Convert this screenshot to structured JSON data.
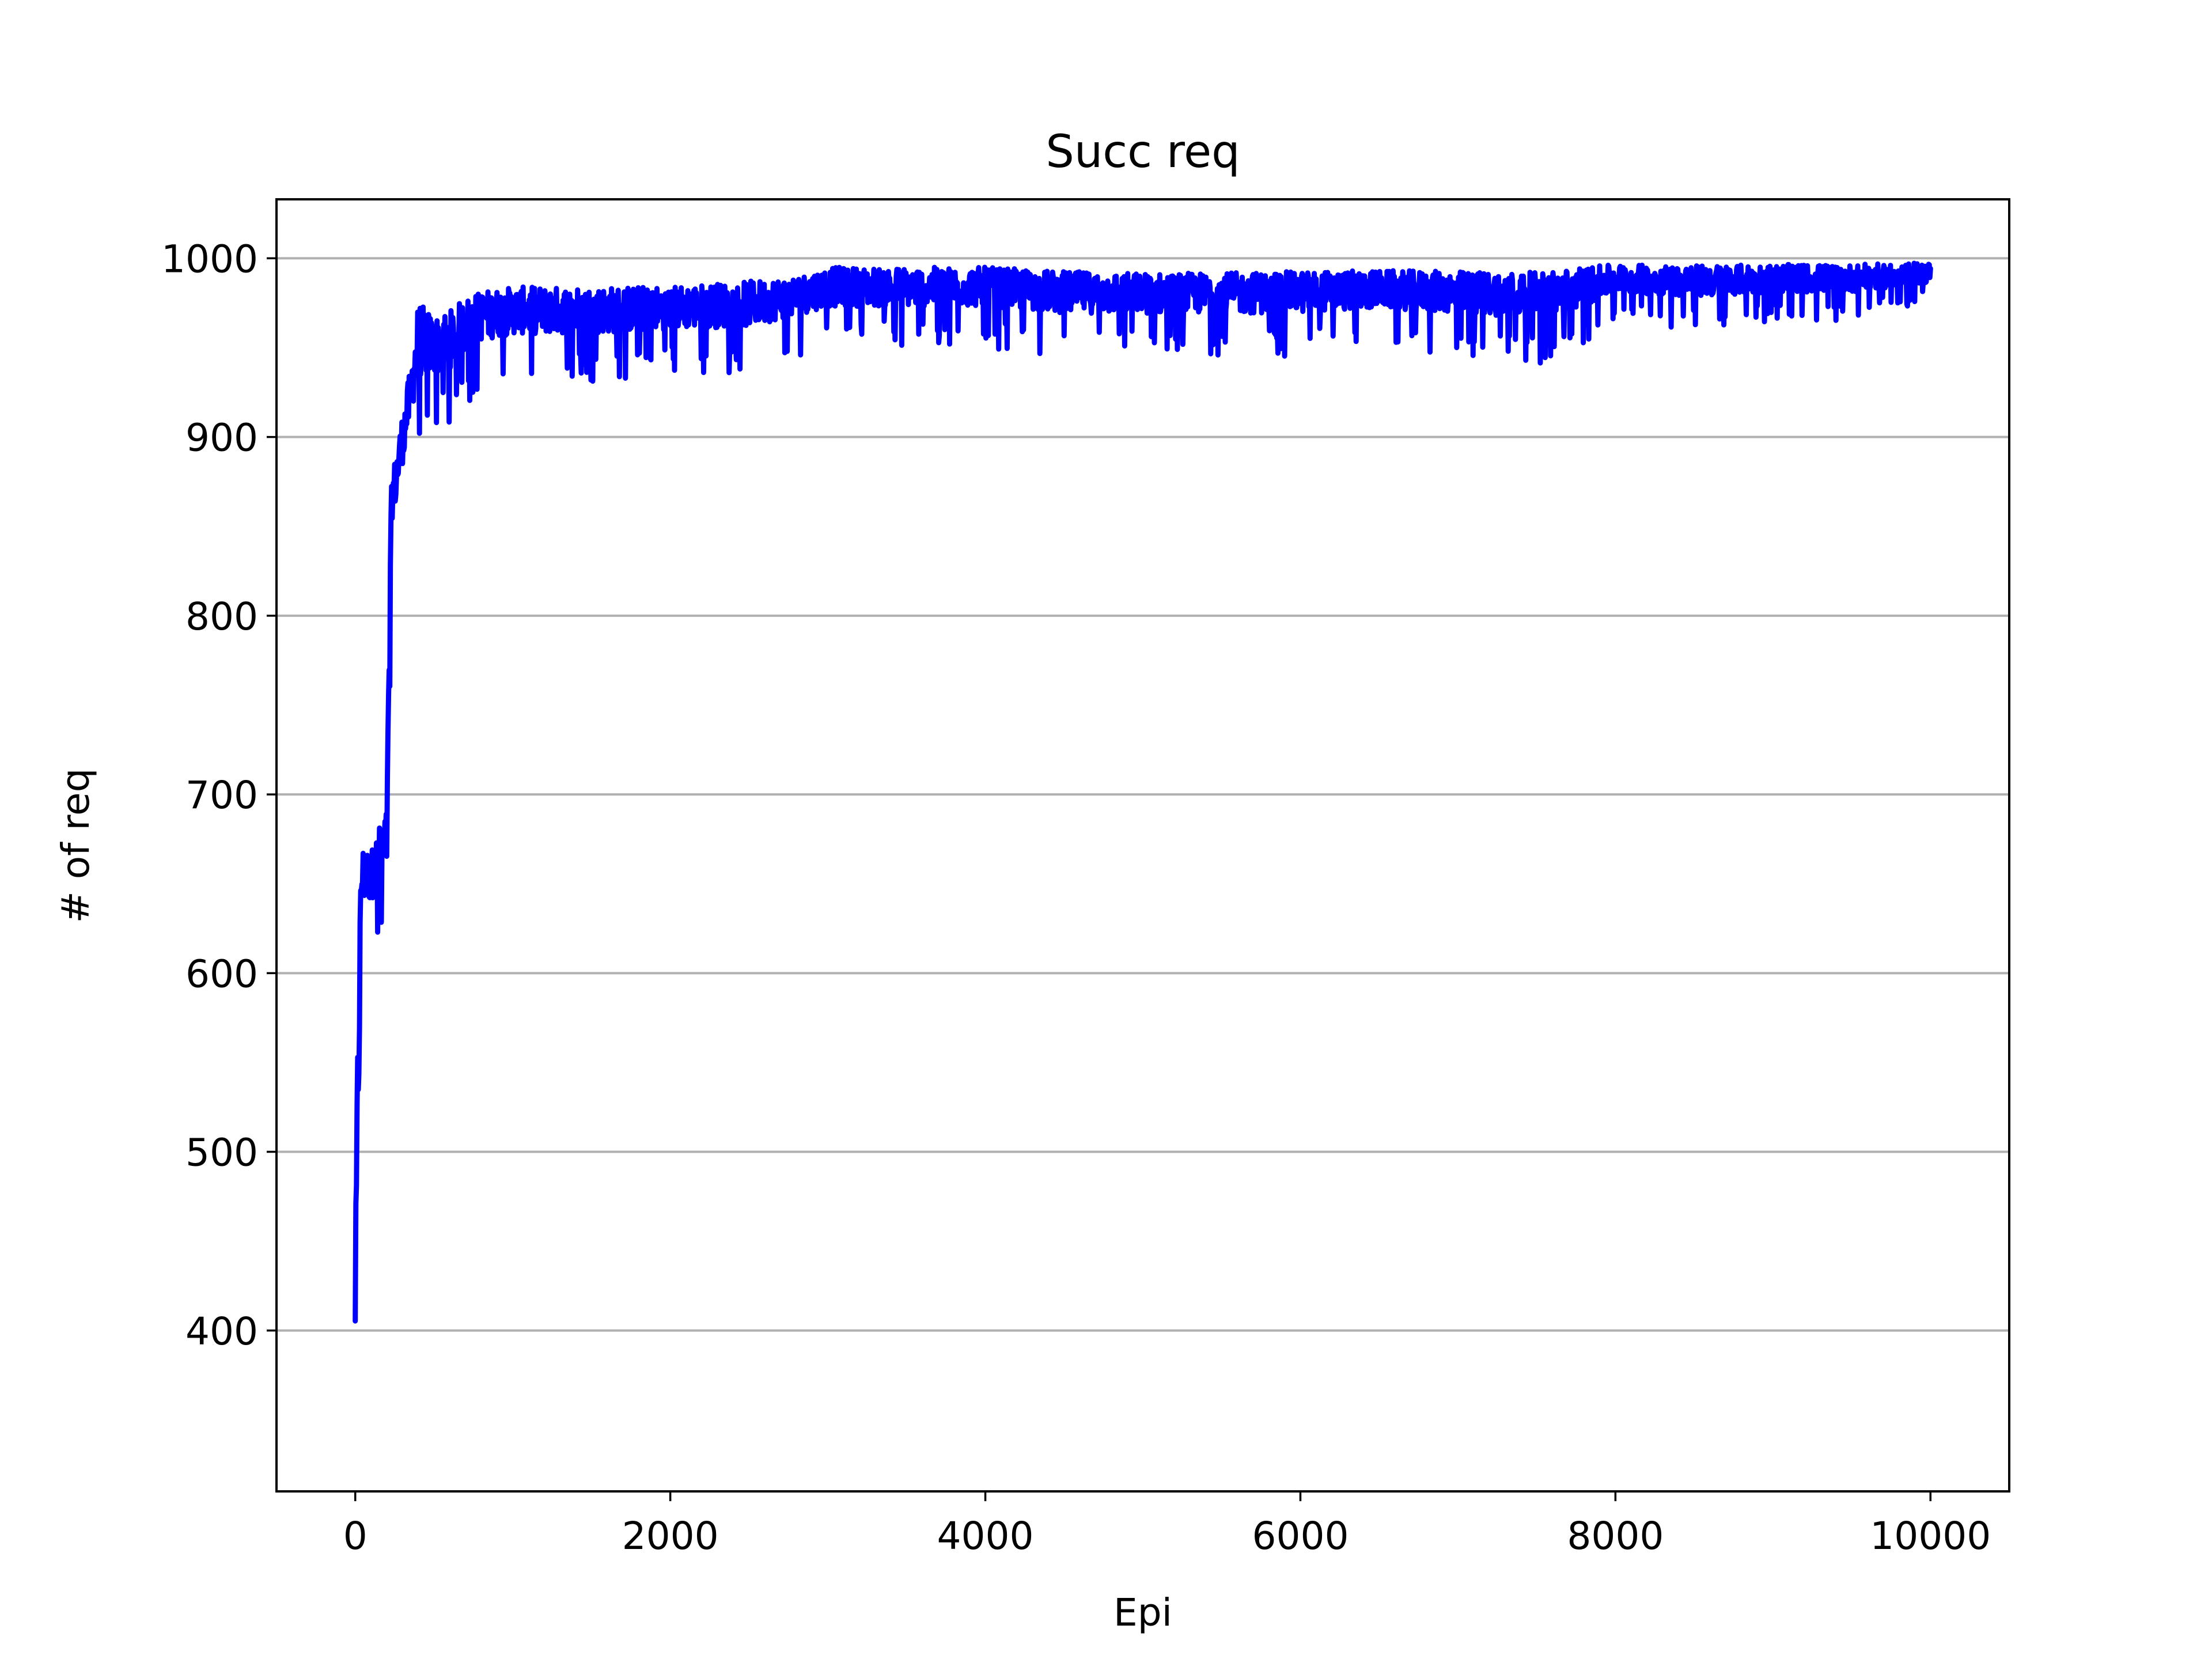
{
  "chart_data": {
    "type": "line",
    "title": "Succ req",
    "xlabel": "Epi",
    "ylabel": "# of req",
    "xlim": [
      -500,
      10500
    ],
    "ylim": [
      310,
      1033
    ],
    "xticks": [
      0,
      2000,
      4000,
      6000,
      8000,
      10000
    ],
    "xtick_labels": [
      "0",
      "2000",
      "4000",
      "6000",
      "8000",
      "10000"
    ],
    "yticks": [
      400,
      500,
      600,
      700,
      800,
      900,
      1000
    ],
    "ytick_labels": [
      "400",
      "500",
      "600",
      "700",
      "800",
      "900",
      "1000"
    ],
    "grid": "horizontal",
    "legend": "none",
    "series": [
      {
        "color": "#0000ff",
        "envelope": {
          "x": [
            0,
            20,
            40,
            100,
            150,
            200,
            230,
            260,
            300,
            350,
            400,
            500,
            600,
            700,
            800,
            1000,
            1500,
            2000,
            2500,
            2800,
            3000,
            3500,
            4000,
            4500,
            5000,
            5500,
            6000,
            6500,
            7000,
            7500,
            7800,
            8000,
            8500,
            9000,
            9500,
            10000
          ],
          "min": [
            340,
            400,
            600,
            610,
            610,
            620,
            830,
            830,
            855,
            880,
            890,
            900,
            905,
            915,
            925,
            930,
            930,
            935,
            935,
            945,
            950,
            950,
            950,
            945,
            945,
            945,
            945,
            950,
            945,
            940,
            950,
            965,
            960,
            965,
            965,
            975
          ],
          "max": [
            450,
            630,
            680,
            675,
            690,
            700,
            880,
            900,
            920,
            945,
            985,
            975,
            978,
            985,
            988,
            990,
            990,
            990,
            993,
            995,
            1000,
            1000,
            1000,
            998,
            997,
            997,
            998,
            998,
            998,
            998,
            1000,
            1000,
            1000,
            1000,
            1000,
            1000
          ]
        }
      }
    ]
  }
}
